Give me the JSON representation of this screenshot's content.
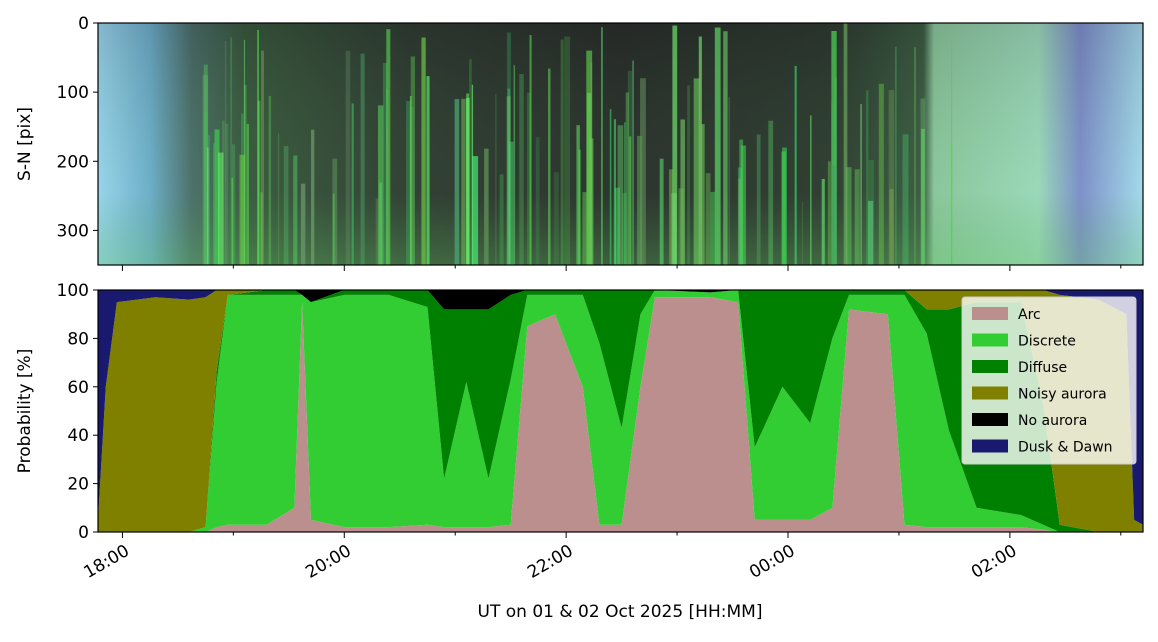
{
  "chart_data": [
    {
      "type": "image",
      "ylabel": "S-N [pix]",
      "ylim": [
        350,
        0
      ],
      "yticks": [
        0,
        100,
        200,
        300
      ],
      "xlim": [
        17.78,
        27.2
      ]
    },
    {
      "type": "area",
      "stacked": true,
      "ylabel": "Probability [%]",
      "xlabel": "UT on 01 & 02 Oct 2025 [HH:MM]",
      "xlim": [
        17.78,
        27.2
      ],
      "ylim": [
        0,
        100
      ],
      "yticks": [
        0,
        20,
        40,
        60,
        80,
        100
      ],
      "xticks": [
        {
          "value": 18,
          "label": "18:00"
        },
        {
          "value": 20,
          "label": "20:00"
        },
        {
          "value": 22,
          "label": "22:00"
        },
        {
          "value": 24,
          "label": "00:00"
        },
        {
          "value": 26,
          "label": "02:00"
        }
      ],
      "xminorticks": [
        19,
        21,
        23,
        25,
        27
      ],
      "legend": "upper right",
      "x": [
        17.78,
        17.85,
        17.95,
        18.3,
        18.6,
        18.75,
        18.85,
        18.95,
        19.3,
        19.55,
        19.62,
        19.7,
        20.0,
        20.4,
        20.75,
        20.9,
        21.1,
        21.3,
        21.5,
        21.65,
        21.9,
        22.15,
        22.3,
        22.5,
        22.67,
        22.8,
        23.3,
        23.55,
        23.7,
        23.95,
        24.2,
        24.4,
        24.55,
        24.9,
        25.05,
        25.25,
        25.45,
        25.7,
        26.1,
        26.3,
        26.45,
        26.8,
        27.05,
        27.12,
        27.2
      ],
      "series": [
        {
          "name": "Arc",
          "color": "#bc8f8f",
          "values": [
            0,
            0,
            0,
            0,
            0,
            0,
            2,
            3,
            3,
            10,
            95,
            5,
            2,
            2,
            3,
            2,
            2,
            2,
            3,
            85,
            90,
            60,
            3,
            3,
            60,
            97,
            97,
            95,
            5,
            5,
            5,
            10,
            92,
            90,
            3,
            2,
            2,
            2,
            2,
            1,
            0,
            0,
            0,
            0,
            0
          ]
        },
        {
          "name": "Discrete",
          "color": "#32cd32",
          "values": [
            0,
            0,
            0,
            0,
            0,
            2,
            60,
            95,
            95,
            88,
            3,
            90,
            96,
            96,
            90,
            20,
            60,
            20,
            60,
            13,
            8,
            38,
            75,
            40,
            30,
            3,
            2,
            5,
            30,
            55,
            40,
            70,
            6,
            8,
            95,
            80,
            40,
            8,
            5,
            2,
            0,
            0,
            0,
            0,
            0
          ]
        },
        {
          "name": "Diffuse",
          "color": "#008000",
          "values": [
            0,
            0,
            0,
            0,
            0,
            0,
            5,
            0,
            2,
            2,
            0,
            0,
            2,
            2,
            7,
            70,
            30,
            70,
            35,
            2,
            2,
            2,
            22,
            57,
            10,
            0,
            0,
            0,
            65,
            40,
            55,
            20,
            2,
            2,
            2,
            10,
            50,
            85,
            88,
            50,
            3,
            0,
            0,
            0,
            0
          ]
        },
        {
          "name": "Noisy aurora",
          "color": "#808000",
          "values": [
            5,
            60,
            95,
            97,
            96,
            95,
            33,
            2,
            0,
            0,
            0,
            0,
            0,
            0,
            0,
            0,
            0,
            0,
            0,
            0,
            0,
            0,
            0,
            0,
            0,
            0,
            0,
            0,
            0,
            0,
            0,
            0,
            0,
            0,
            0,
            8,
            8,
            5,
            5,
            47,
            95,
            96,
            90,
            5,
            3
          ]
        },
        {
          "name": "No aurora",
          "color": "#000000",
          "values": [
            0,
            0,
            0,
            0,
            0,
            0,
            0,
            0,
            0,
            0,
            2,
            5,
            0,
            0,
            0,
            8,
            8,
            8,
            2,
            0,
            0,
            0,
            0,
            0,
            0,
            0,
            1,
            0,
            0,
            0,
            0,
            0,
            0,
            0,
            0,
            0,
            0,
            0,
            0,
            0,
            0,
            0,
            0,
            0,
            0
          ]
        },
        {
          "name": "Dusk & Dawn",
          "color": "#191970",
          "values": [
            95,
            40,
            5,
            3,
            4,
            3,
            0,
            0,
            0,
            0,
            0,
            0,
            0,
            0,
            0,
            0,
            0,
            0,
            0,
            0,
            0,
            0,
            0,
            0,
            0,
            0,
            0,
            0,
            0,
            0,
            0,
            0,
            0,
            0,
            0,
            0,
            0,
            0,
            0,
            0,
            2,
            4,
            10,
            95,
            97
          ]
        }
      ]
    }
  ]
}
